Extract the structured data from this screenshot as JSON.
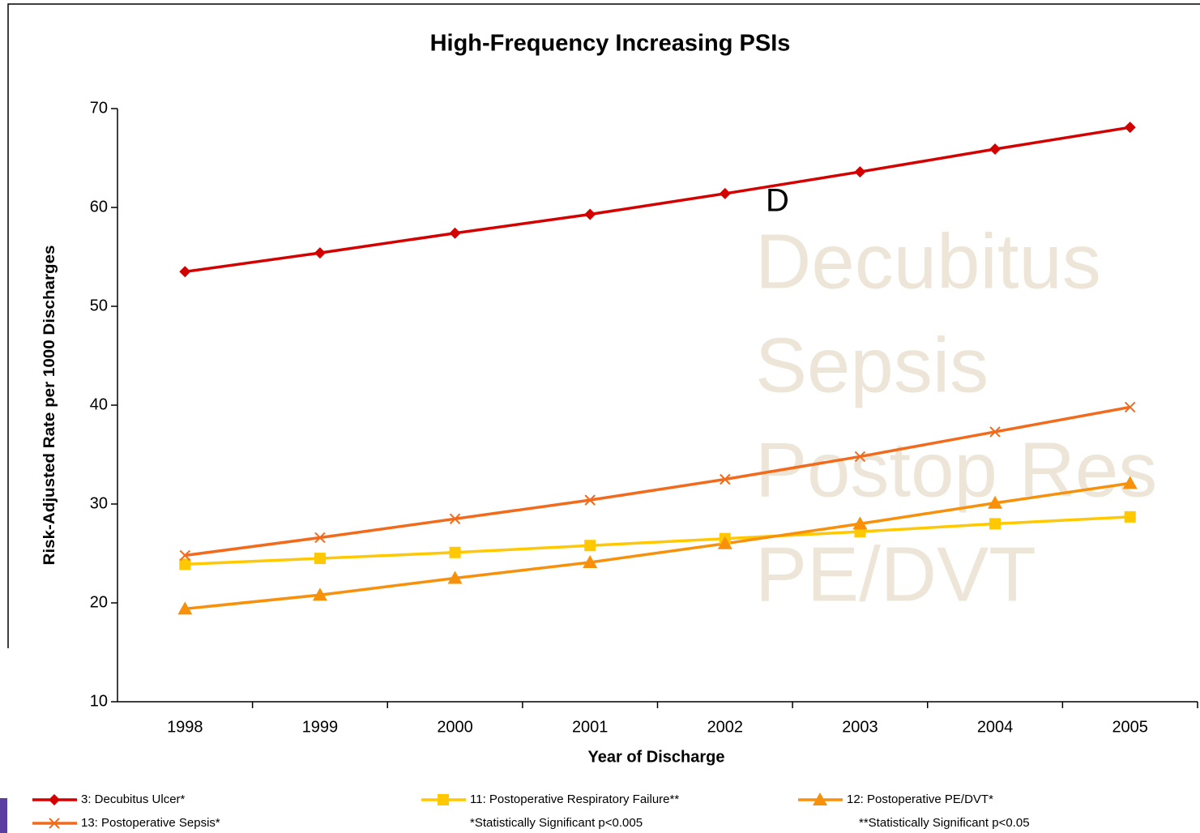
{
  "chart_data": {
    "type": "line",
    "title": "High-Frequency Increasing PSIs",
    "x_label": "Year of Discharge",
    "y_label": "Risk-Adjusted Rate per 1000 Discharges",
    "categories": [
      "1998",
      "1999",
      "2000",
      "2001",
      "2002",
      "2003",
      "2004",
      "2005"
    ],
    "ylim": [
      10,
      70
    ],
    "yticks": [
      10,
      20,
      30,
      40,
      50,
      60,
      70
    ],
    "grid": false,
    "series": [
      {
        "name": "3: Decubitus Ulcer*",
        "color": "#d40000",
        "marker": "diamond",
        "values": [
          53.5,
          55.4,
          57.4,
          59.3,
          61.4,
          63.6,
          65.9,
          68.1
        ]
      },
      {
        "name": "11: Postoperative Respiratory Failure**",
        "color": "#ffc800",
        "marker": "square",
        "values": [
          23.9,
          24.5,
          25.1,
          25.8,
          26.5,
          27.2,
          28.0,
          28.7
        ]
      },
      {
        "name": "12: Postoperative PE/DVT*",
        "color": "#f7900a",
        "marker": "triangle",
        "values": [
          19.4,
          20.8,
          22.5,
          24.1,
          26.0,
          28.0,
          30.1,
          32.1
        ]
      },
      {
        "name": "13: Postoperative Sepsis*",
        "color": "#f26a1b",
        "marker": "x",
        "values": [
          24.8,
          26.6,
          28.5,
          30.4,
          32.5,
          34.8,
          37.3,
          39.8
        ]
      }
    ],
    "footnotes": [
      "*Statistically Significant p<0.005",
      "**Statistically Significant p<0.05"
    ],
    "annotations": [
      "D",
      "Decubitus",
      "Sepsis",
      "Postop Res",
      "PE/DVT"
    ]
  }
}
